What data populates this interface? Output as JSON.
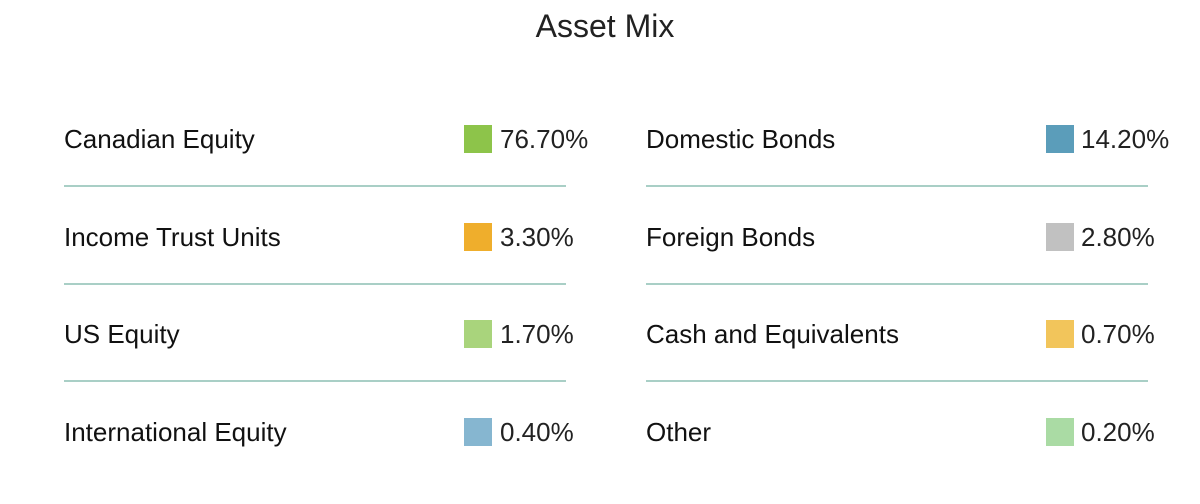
{
  "chart_data": {
    "type": "table",
    "title": "Asset Mix",
    "items": [
      {
        "name": "Canadian Equity",
        "value": "76.70%",
        "color": "#8dc44a"
      },
      {
        "name": "Domestic Bonds",
        "value": "14.20%",
        "color": "#5b9dba"
      },
      {
        "name": "Income Trust Units",
        "value": "3.30%",
        "color": "#efae2c"
      },
      {
        "name": "Foreign Bonds",
        "value": "2.80%",
        "color": "#c1c1c1"
      },
      {
        "name": "US Equity",
        "value": "1.70%",
        "color": "#a9d47c"
      },
      {
        "name": "Cash and Equivalents",
        "value": "0.70%",
        "color": "#f2c55b"
      },
      {
        "name": "International Equity",
        "value": "0.40%",
        "color": "#86b6d0"
      },
      {
        "name": "Other",
        "value": "0.20%",
        "color": "#aadba4"
      }
    ]
  }
}
